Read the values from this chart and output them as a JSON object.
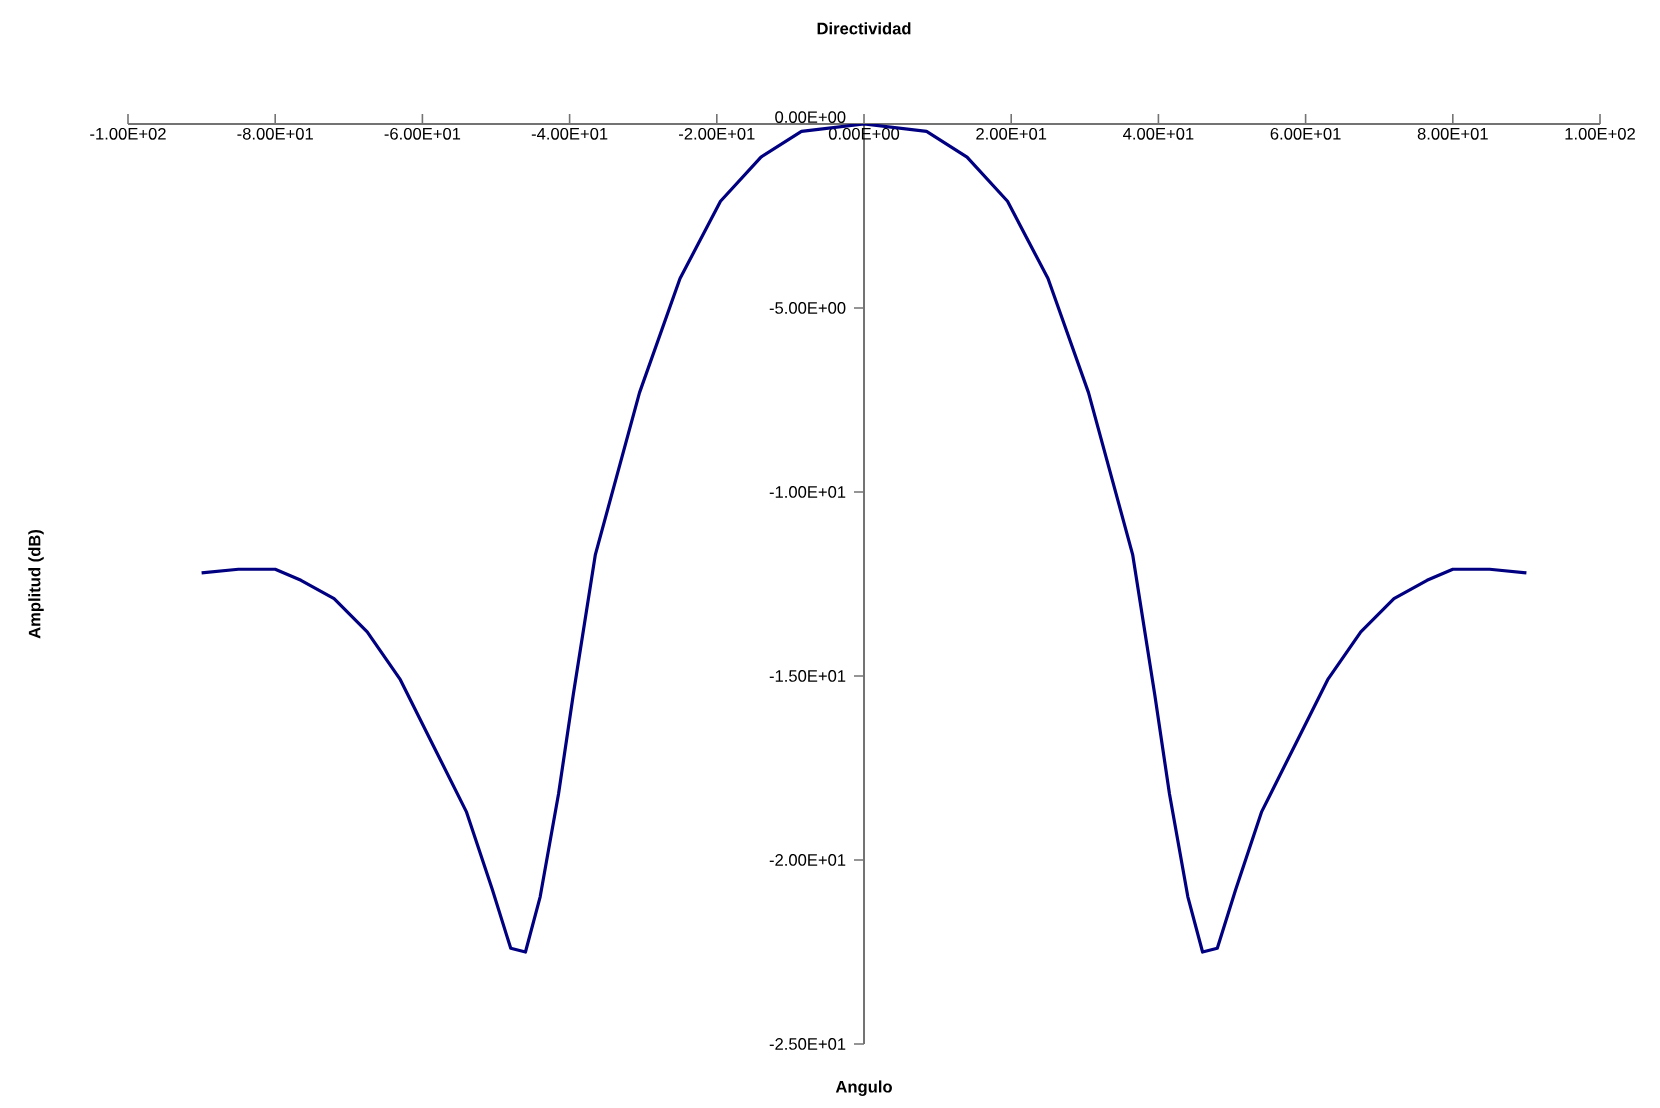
{
  "chart_data": {
    "type": "line",
    "title": "Directividad",
    "xlabel": "Angulo",
    "ylabel": "Amplitud (dB)",
    "x": [
      -90,
      -85,
      -80,
      -76.5,
      -72,
      -67.5,
      -63,
      -58.5,
      -54,
      -50.5,
      -48,
      -46,
      -44,
      -41.5,
      -39.5,
      -36.5,
      -30.5,
      -25,
      -19.5,
      -14,
      -8.5,
      0,
      8.5,
      14,
      19.5,
      25,
      30.5,
      36.5,
      39.5,
      41.5,
      44,
      46,
      48,
      50.5,
      54,
      58.5,
      63,
      67.5,
      72,
      76.5,
      80,
      85,
      90
    ],
    "series": [
      {
        "color": "#000080",
        "values": [
          -12.2,
          -12.1,
          -12.1,
          -12.4,
          -12.9,
          -13.8,
          -15.1,
          -16.9,
          -18.7,
          -20.8,
          -22.4,
          -22.5,
          -21,
          -18.2,
          -15.5,
          -11.7,
          -7.3,
          -4.2,
          -2.1,
          -0.9,
          -0.2,
          0,
          -0.2,
          -0.9,
          -2.1,
          -4.2,
          -7.3,
          -11.7,
          -15.5,
          -18.2,
          -21,
          -22.5,
          -22.4,
          -20.8,
          -18.7,
          -16.9,
          -15.1,
          -13.8,
          -12.9,
          -12.4,
          -12.1,
          -12.1,
          -12.2
        ]
      }
    ],
    "xlim": [
      -100,
      100
    ],
    "ylim": [
      -25,
      0
    ],
    "xticks": [
      {
        "value": -100,
        "label": "-1.00E+02"
      },
      {
        "value": -80,
        "label": "-8.00E+01"
      },
      {
        "value": -60,
        "label": "-6.00E+01"
      },
      {
        "value": -40,
        "label": "-4.00E+01"
      },
      {
        "value": -20,
        "label": "-2.00E+01"
      },
      {
        "value": 0,
        "label": "0.00E+00"
      },
      {
        "value": 20,
        "label": "2.00E+01"
      },
      {
        "value": 40,
        "label": "4.00E+01"
      },
      {
        "value": 60,
        "label": "6.00E+01"
      },
      {
        "value": 80,
        "label": "8.00E+01"
      },
      {
        "value": 100,
        "label": "1.00E+02"
      }
    ],
    "yticks": [
      {
        "value": 0,
        "label": "0.00E+00"
      },
      {
        "value": -5,
        "label": "-5.00E+00"
      },
      {
        "value": -10,
        "label": "-1.00E+01"
      },
      {
        "value": -15,
        "label": "-1.50E+01"
      },
      {
        "value": -20,
        "label": "-2.00E+01"
      },
      {
        "value": -25,
        "label": "-2.50E+01"
      }
    ],
    "grid": false
  }
}
